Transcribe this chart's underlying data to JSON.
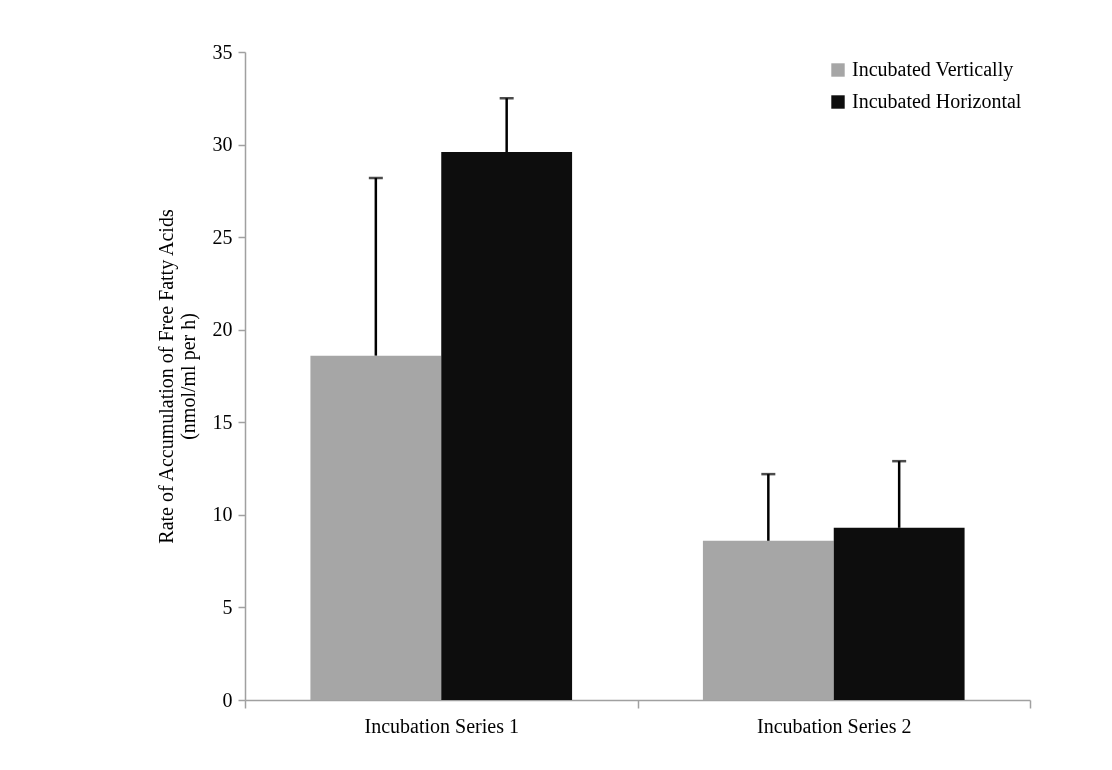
{
  "chart_data": {
    "type": "bar",
    "ylabel": "Rate of Accumulation of Free Fatty Acids\n(nmol/ml per h)",
    "categories": [
      "Incubation Series 1",
      "Incubation Series 2"
    ],
    "series": [
      {
        "name": "Incubated Vertically",
        "color": "#a6a6a6",
        "values": [
          18.6,
          8.6
        ],
        "errors": [
          [
            18.6,
            28.2
          ],
          [
            8.6,
            12.2
          ]
        ]
      },
      {
        "name": "Incubated Horizontal",
        "color": "#0d0d0d",
        "values": [
          29.6,
          9.3
        ],
        "errors": [
          [
            29.6,
            32.5
          ],
          [
            9.3,
            12.9
          ]
        ]
      }
    ],
    "ylim": [
      0,
      35
    ],
    "yticks": [
      0,
      5,
      10,
      15,
      20,
      25,
      30,
      35
    ],
    "grid": false,
    "legend": "top right"
  }
}
